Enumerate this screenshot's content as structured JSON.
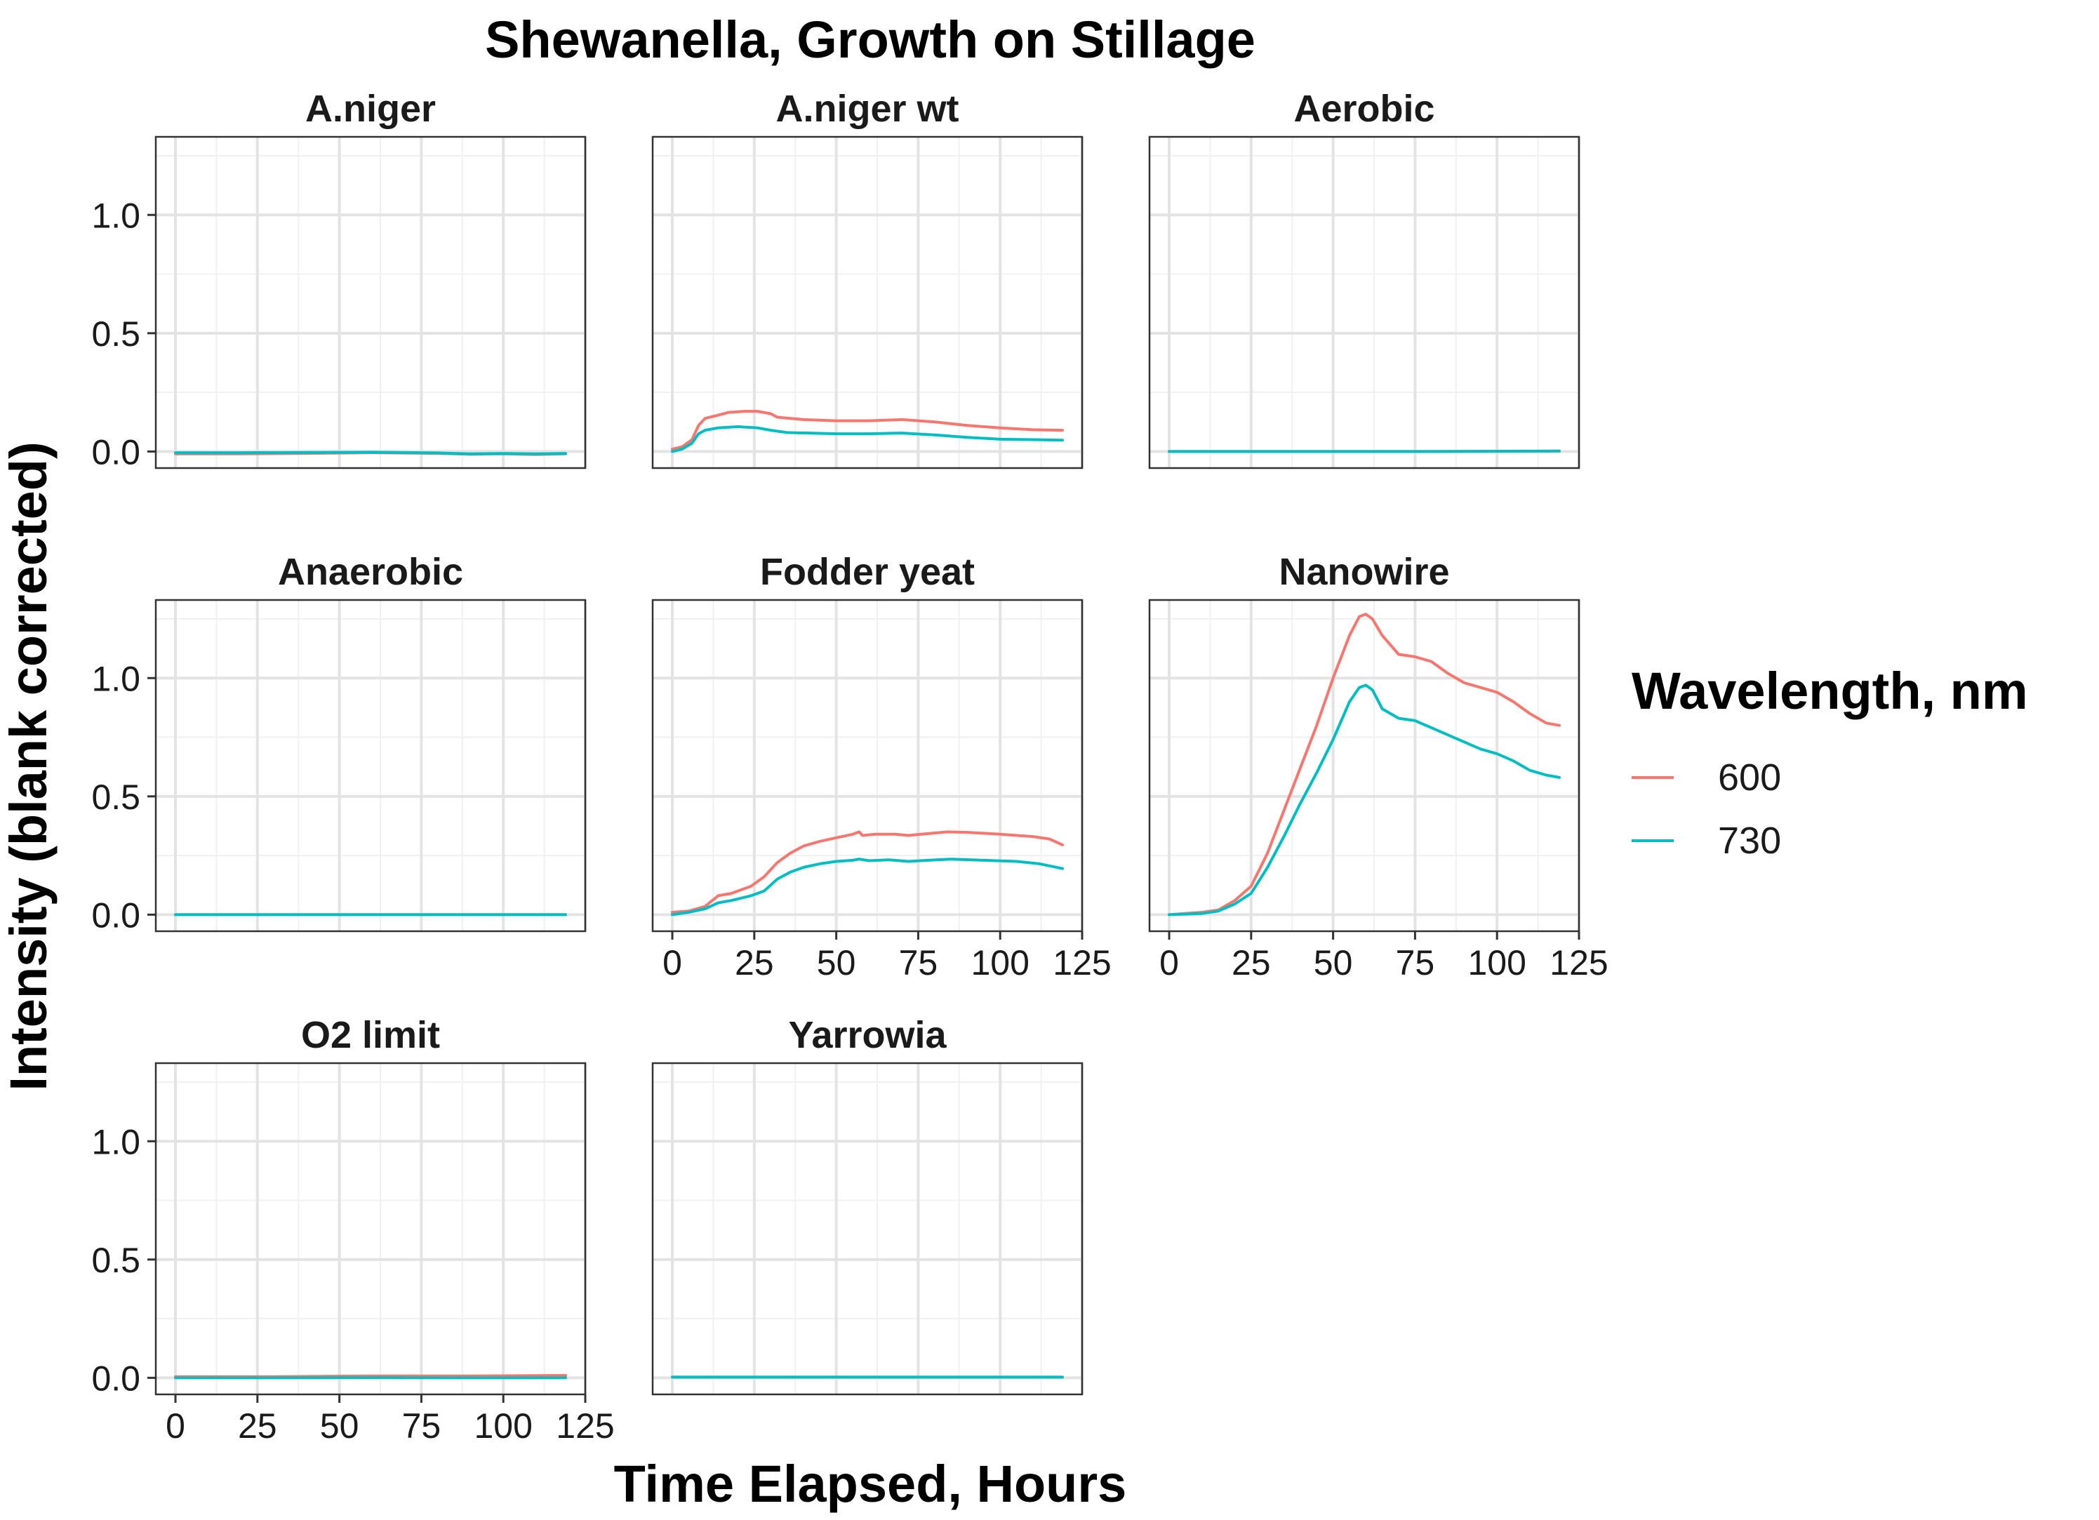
{
  "chart_data": {
    "type": "line",
    "title": "Shewanella, Growth on Stillage",
    "xlabel": "Time Elapsed, Hours",
    "ylabel": "Intensity (blank corrected)",
    "xlim": [
      -6,
      125
    ],
    "ylim": [
      -0.07,
      1.33
    ],
    "x_ticks": [
      0,
      25,
      50,
      75,
      100,
      125
    ],
    "y_ticks": [
      0.0,
      0.5,
      1.0
    ],
    "x_tick_labels": [
      "0",
      "25",
      "50",
      "75",
      "100",
      "125"
    ],
    "y_tick_labels": [
      "0.0",
      "0.5",
      "1.0"
    ],
    "grid": true,
    "legend": {
      "title": "Wavelength, nm",
      "placement": "right",
      "entries": [
        {
          "label": "600",
          "color": "#F8766D"
        },
        {
          "label": "730",
          "color": "#00BFC4"
        }
      ]
    },
    "panels": [
      {
        "title": "A.niger",
        "series": [
          {
            "name": "600",
            "color": "#F8766D",
            "points": [
              [
                0,
                -0.01
              ],
              [
                20,
                -0.01
              ],
              [
                40,
                -0.008
              ],
              [
                60,
                -0.005
              ],
              [
                80,
                -0.008
              ],
              [
                90,
                -0.012
              ],
              [
                100,
                -0.01
              ],
              [
                110,
                -0.013
              ],
              [
                119,
                -0.01
              ]
            ]
          },
          {
            "name": "730",
            "color": "#00BFC4",
            "points": [
              [
                0,
                -0.005
              ],
              [
                20,
                -0.005
              ],
              [
                40,
                -0.004
              ],
              [
                60,
                -0.003
              ],
              [
                80,
                -0.006
              ],
              [
                90,
                -0.01
              ],
              [
                100,
                -0.008
              ],
              [
                110,
                -0.01
              ],
              [
                119,
                -0.008
              ]
            ]
          }
        ]
      },
      {
        "title": "A.niger wt",
        "series": [
          {
            "name": "600",
            "color": "#F8766D",
            "points": [
              [
                0,
                0.01
              ],
              [
                3,
                0.02
              ],
              [
                6,
                0.05
              ],
              [
                8,
                0.11
              ],
              [
                10,
                0.14
              ],
              [
                13,
                0.15
              ],
              [
                17,
                0.165
              ],
              [
                22,
                0.17
              ],
              [
                26,
                0.17
              ],
              [
                30,
                0.16
              ],
              [
                32,
                0.145
              ],
              [
                40,
                0.135
              ],
              [
                50,
                0.13
              ],
              [
                60,
                0.13
              ],
              [
                70,
                0.135
              ],
              [
                80,
                0.125
              ],
              [
                90,
                0.11
              ],
              [
                100,
                0.1
              ],
              [
                110,
                0.092
              ],
              [
                119,
                0.09
              ]
            ]
          },
          {
            "name": "730",
            "color": "#00BFC4",
            "points": [
              [
                0,
                0.0
              ],
              [
                3,
                0.01
              ],
              [
                6,
                0.035
              ],
              [
                8,
                0.075
              ],
              [
                10,
                0.09
              ],
              [
                14,
                0.1
              ],
              [
                20,
                0.105
              ],
              [
                26,
                0.1
              ],
              [
                30,
                0.09
              ],
              [
                35,
                0.08
              ],
              [
                50,
                0.075
              ],
              [
                60,
                0.075
              ],
              [
                70,
                0.078
              ],
              [
                80,
                0.07
              ],
              [
                90,
                0.06
              ],
              [
                100,
                0.052
              ],
              [
                110,
                0.05
              ],
              [
                119,
                0.048
              ]
            ]
          }
        ]
      },
      {
        "title": "Aerobic",
        "series": [
          {
            "name": "600",
            "color": "#F8766D",
            "points": [
              [
                0,
                0.0
              ],
              [
                40,
                0.0
              ],
              [
                80,
                0.0
              ],
              [
                119,
                0.002
              ]
            ]
          },
          {
            "name": "730",
            "color": "#00BFC4",
            "points": [
              [
                0,
                0.0
              ],
              [
                40,
                0.0
              ],
              [
                80,
                0.0
              ],
              [
                119,
                0.002
              ]
            ]
          }
        ]
      },
      {
        "title": "Anaerobic",
        "series": [
          {
            "name": "600",
            "color": "#F8766D",
            "points": [
              [
                0,
                0.0
              ],
              [
                60,
                0.0
              ],
              [
                119,
                0.0
              ]
            ]
          },
          {
            "name": "730",
            "color": "#00BFC4",
            "points": [
              [
                0,
                0.0
              ],
              [
                60,
                0.0
              ],
              [
                119,
                0.0
              ]
            ]
          }
        ]
      },
      {
        "title": "Fodder yeat",
        "series": [
          {
            "name": "600",
            "color": "#F8766D",
            "points": [
              [
                0,
                0.01
              ],
              [
                5,
                0.015
              ],
              [
                10,
                0.035
              ],
              [
                14,
                0.08
              ],
              [
                18,
                0.09
              ],
              [
                24,
                0.12
              ],
              [
                28,
                0.16
              ],
              [
                32,
                0.22
              ],
              [
                36,
                0.26
              ],
              [
                40,
                0.29
              ],
              [
                45,
                0.31
              ],
              [
                50,
                0.325
              ],
              [
                55,
                0.34
              ],
              [
                57,
                0.35
              ],
              [
                58,
                0.335
              ],
              [
                62,
                0.34
              ],
              [
                68,
                0.34
              ],
              [
                72,
                0.335
              ],
              [
                76,
                0.34
              ],
              [
                84,
                0.35
              ],
              [
                90,
                0.348
              ],
              [
                100,
                0.34
              ],
              [
                110,
                0.33
              ],
              [
                115,
                0.32
              ],
              [
                119,
                0.295
              ]
            ]
          },
          {
            "name": "730",
            "color": "#00BFC4",
            "points": [
              [
                0,
                0.0
              ],
              [
                5,
                0.01
              ],
              [
                10,
                0.025
              ],
              [
                14,
                0.05
              ],
              [
                18,
                0.06
              ],
              [
                24,
                0.08
              ],
              [
                28,
                0.1
              ],
              [
                32,
                0.15
              ],
              [
                36,
                0.18
              ],
              [
                40,
                0.2
              ],
              [
                45,
                0.215
              ],
              [
                50,
                0.225
              ],
              [
                55,
                0.23
              ],
              [
                57,
                0.235
              ],
              [
                60,
                0.228
              ],
              [
                66,
                0.232
              ],
              [
                72,
                0.225
              ],
              [
                78,
                0.23
              ],
              [
                85,
                0.235
              ],
              [
                95,
                0.23
              ],
              [
                105,
                0.225
              ],
              [
                112,
                0.215
              ],
              [
                119,
                0.195
              ]
            ]
          }
        ]
      },
      {
        "title": "Nanowire",
        "series": [
          {
            "name": "600",
            "color": "#F8766D",
            "points": [
              [
                0,
                0.0
              ],
              [
                10,
                0.01
              ],
              [
                15,
                0.02
              ],
              [
                20,
                0.06
              ],
              [
                25,
                0.12
              ],
              [
                30,
                0.26
              ],
              [
                35,
                0.44
              ],
              [
                40,
                0.62
              ],
              [
                45,
                0.8
              ],
              [
                50,
                1.0
              ],
              [
                55,
                1.18
              ],
              [
                58,
                1.26
              ],
              [
                60,
                1.27
              ],
              [
                62,
                1.25
              ],
              [
                65,
                1.18
              ],
              [
                70,
                1.1
              ],
              [
                75,
                1.09
              ],
              [
                80,
                1.07
              ],
              [
                85,
                1.02
              ],
              [
                90,
                0.98
              ],
              [
                95,
                0.96
              ],
              [
                100,
                0.94
              ],
              [
                105,
                0.9
              ],
              [
                110,
                0.85
              ],
              [
                115,
                0.81
              ],
              [
                119,
                0.8
              ]
            ]
          },
          {
            "name": "730",
            "color": "#00BFC4",
            "points": [
              [
                0,
                0.0
              ],
              [
                10,
                0.005
              ],
              [
                15,
                0.015
              ],
              [
                20,
                0.045
              ],
              [
                25,
                0.09
              ],
              [
                30,
                0.2
              ],
              [
                35,
                0.33
              ],
              [
                40,
                0.47
              ],
              [
                45,
                0.6
              ],
              [
                50,
                0.74
              ],
              [
                55,
                0.9
              ],
              [
                58,
                0.96
              ],
              [
                60,
                0.97
              ],
              [
                62,
                0.95
              ],
              [
                65,
                0.87
              ],
              [
                70,
                0.83
              ],
              [
                75,
                0.82
              ],
              [
                80,
                0.79
              ],
              [
                85,
                0.76
              ],
              [
                90,
                0.73
              ],
              [
                95,
                0.7
              ],
              [
                100,
                0.68
              ],
              [
                105,
                0.65
              ],
              [
                110,
                0.61
              ],
              [
                115,
                0.59
              ],
              [
                119,
                0.58
              ]
            ]
          }
        ]
      },
      {
        "title": "O2 limit",
        "series": [
          {
            "name": "600",
            "color": "#F8766D",
            "points": [
              [
                0,
                0.005
              ],
              [
                30,
                0.005
              ],
              [
                60,
                0.008
              ],
              [
                90,
                0.008
              ],
              [
                119,
                0.01
              ]
            ]
          },
          {
            "name": "730",
            "color": "#00BFC4",
            "points": [
              [
                0,
                0.0
              ],
              [
                30,
                0.0
              ],
              [
                60,
                0.001
              ],
              [
                90,
                0.0
              ],
              [
                119,
                0.0
              ]
            ]
          }
        ]
      },
      {
        "title": "Yarrowia",
        "series": [
          {
            "name": "600",
            "color": "#F8766D",
            "points": [
              [
                0,
                0.003
              ],
              [
                60,
                0.003
              ],
              [
                119,
                0.003
              ]
            ]
          },
          {
            "name": "730",
            "color": "#00BFC4",
            "points": [
              [
                0,
                0.003
              ],
              [
                60,
                0.003
              ],
              [
                119,
                0.003
              ]
            ]
          }
        ]
      }
    ]
  }
}
